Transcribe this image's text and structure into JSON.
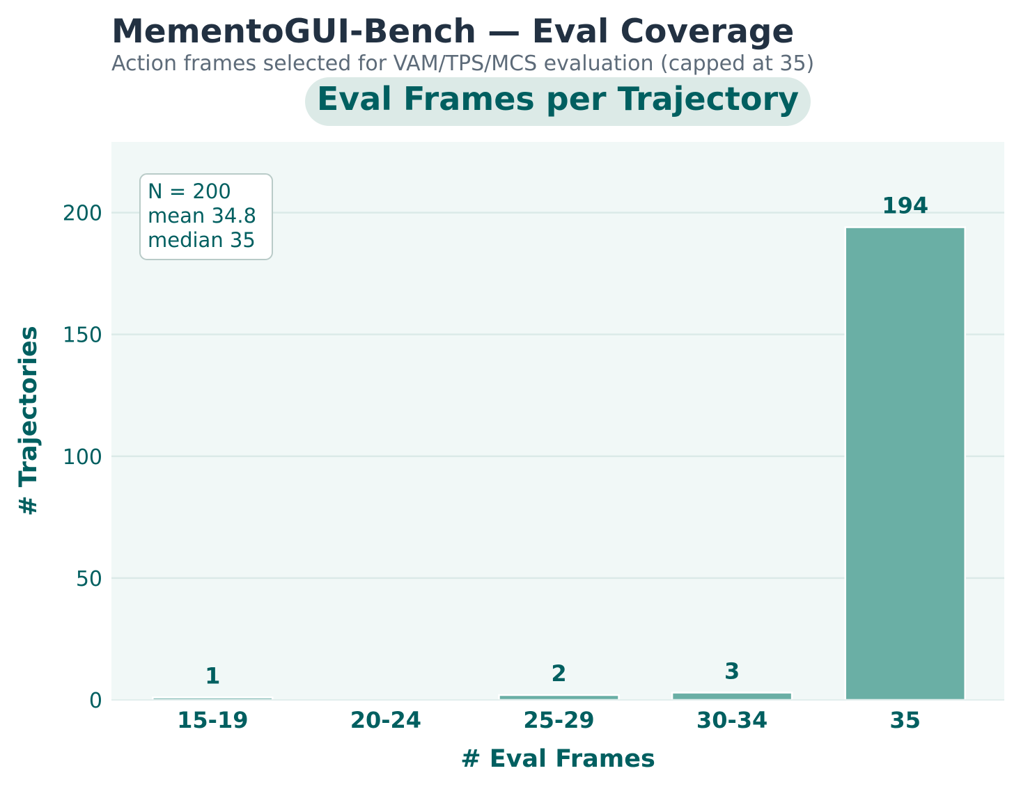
{
  "header": {
    "title": "MementoGUI-Bench — Eval Coverage",
    "subtitle": "Action frames selected for VAM/TPS/MCS evaluation (capped at 35)"
  },
  "colors": {
    "title": "#223142",
    "subtitle": "#5d6b79",
    "accent": "#005f60",
    "bar": "#6aafa5",
    "plot_bg": "#f1f8f7",
    "grid": "#dbeae8",
    "title_pill": "#dceae7",
    "stats_border": "#b9cbc8"
  },
  "chart_data": {
    "type": "bar",
    "title": "Eval Frames per Trajectory",
    "xlabel": "# Eval Frames",
    "ylabel": "# Trajectories",
    "categories": [
      "15-19",
      "20-24",
      "25-29",
      "30-34",
      "35"
    ],
    "values": [
      1,
      0,
      2,
      3,
      194
    ],
    "data_labels": [
      "1",
      "",
      "2",
      "3",
      "194"
    ],
    "ylim": [
      0,
      229
    ],
    "yticks": [
      0,
      50,
      100,
      150,
      200
    ],
    "grid": "horizontal",
    "stats_box": [
      "N = 200",
      "mean 34.8",
      "median 35"
    ],
    "stats_box_position": "top-left"
  }
}
